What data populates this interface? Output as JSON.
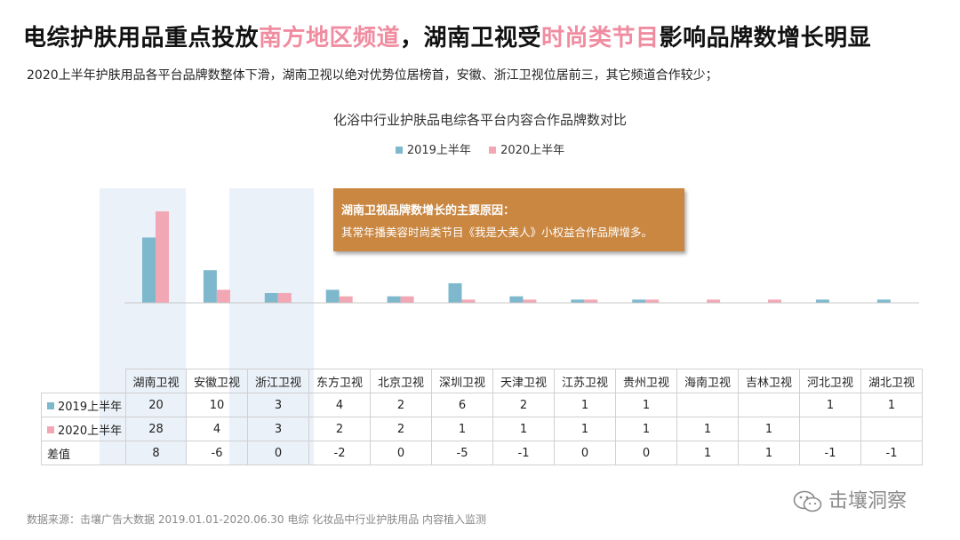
{
  "header": {
    "title_part1": "电综护肤用品重点投放",
    "title_hl1": "南方地区频道",
    "title_part2": "，湖南卫视受",
    "title_hl2": "时尚类节目",
    "title_part3": "影响品牌数增长明显",
    "subtitle": "2020上半年护肤用品各平台品牌数整体下滑，湖南卫视以绝对优势位居榜首，安徽、浙江卫视位居前三，其它频道合作较少；"
  },
  "callout": {
    "heading": "湖南卫视品牌数增长的主要原因：",
    "body": "其常年播美容时尚类节目《我是大美人》小权益合作品牌增多。"
  },
  "chart_data": {
    "type": "bar",
    "title": "化浴中行业护肤品电综各平台内容合作品牌数对比",
    "categories": [
      "湖南卫视",
      "安徽卫视",
      "浙江卫视",
      "东方卫视",
      "北京卫视",
      "深圳卫视",
      "天津卫视",
      "江苏卫视",
      "贵州卫视",
      "海南卫视",
      "吉林卫视",
      "河北卫视",
      "湖北卫视"
    ],
    "series": [
      {
        "name": "2019上半年",
        "color": "#7db8cc",
        "values": [
          20,
          10,
          3,
          4,
          2,
          6,
          2,
          1,
          1,
          null,
          null,
          1,
          1
        ],
        "labels": [
          "20",
          "10",
          "3",
          "4",
          "2",
          "6",
          "2",
          "1",
          "1",
          "",
          "",
          "1",
          "1"
        ]
      },
      {
        "name": "2020上半年",
        "color": "#f2a7b4",
        "values": [
          28,
          4,
          3,
          2,
          2,
          1,
          1,
          1,
          1,
          1,
          1,
          null,
          null
        ],
        "labels": [
          "28",
          "4",
          "3",
          "2",
          "2",
          "1",
          "1",
          "1",
          "1",
          "1",
          "1",
          "",
          ""
        ]
      }
    ],
    "diff": {
      "name": "差值",
      "labels": [
        "8",
        "-6",
        "0",
        "-2",
        "0",
        "-5",
        "-1",
        "0",
        "0",
        "1",
        "1",
        "-1",
        "-1"
      ]
    },
    "highlighted_categories": [
      "湖南卫视",
      "浙江卫视"
    ],
    "ylim": [
      0,
      30
    ],
    "grid": false,
    "legend_position": "top-center"
  },
  "footer": {
    "source": "数据来源：击壤广告大数据 2019.01.01-2020.06.30 电综 化妆品中行业护肤用品 内容植入监测",
    "watermark": "击壤洞察"
  }
}
